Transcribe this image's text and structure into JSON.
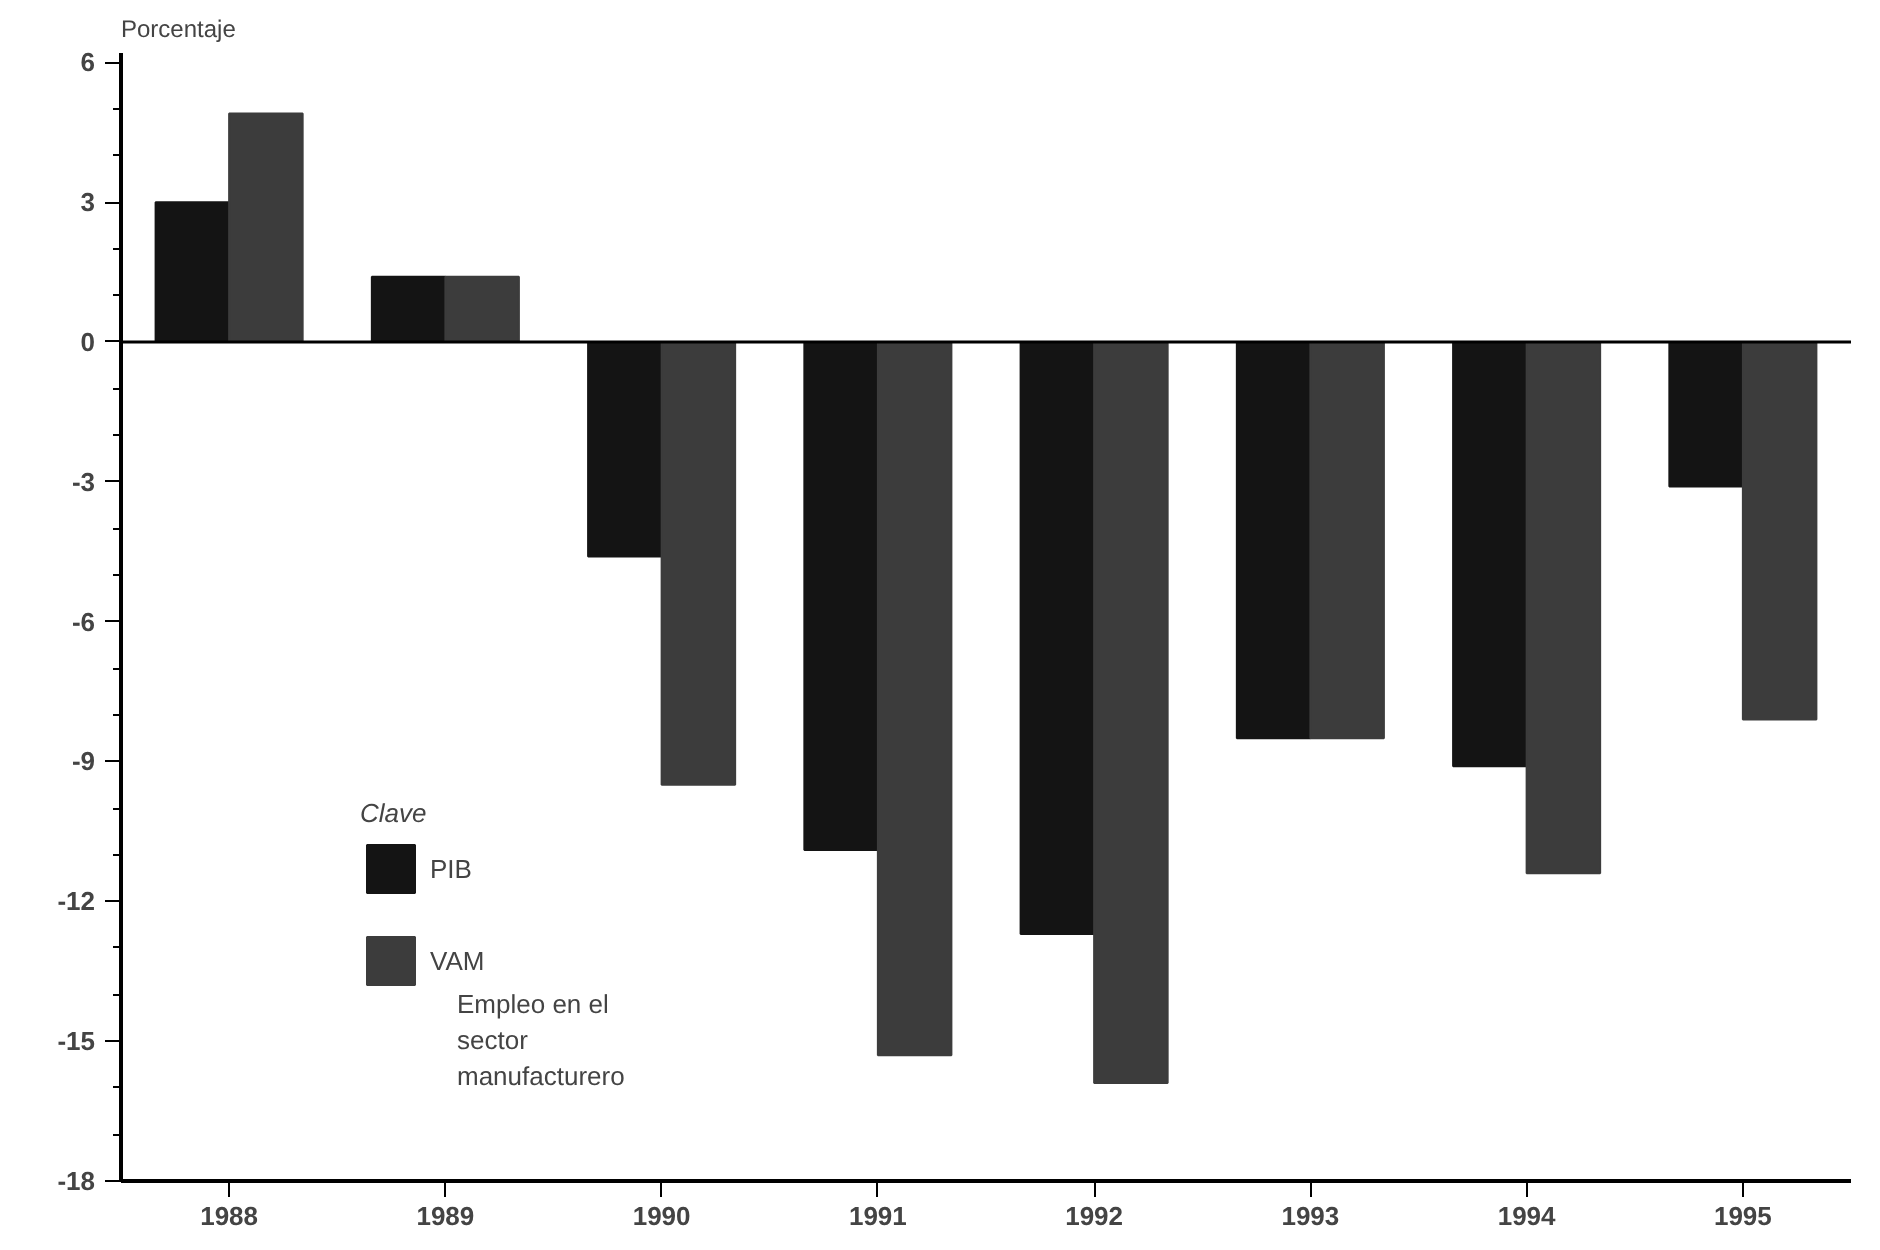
{
  "chart_data": {
    "type": "bar",
    "ylabel": "Porcentaje",
    "legend_title": "Clave",
    "categories": [
      "1988",
      "1989",
      "1990",
      "1991",
      "1992",
      "1993",
      "1994",
      "1995"
    ],
    "series": [
      {
        "name": "PIB",
        "color": "#141414",
        "values": [
          3.0,
          1.4,
          -4.6,
          -10.9,
          -12.7,
          -8.5,
          -9.1,
          -3.1
        ]
      },
      {
        "name": "VAM",
        "color": "#3c3c3c",
        "values": [
          4.9,
          1.4,
          -9.5,
          -15.3,
          -15.9,
          -8.5,
          -11.4,
          -8.1
        ]
      }
    ],
    "ylim": [
      -18,
      6.2
    ],
    "yticks": [
      -18,
      -15,
      -12,
      -9,
      -6,
      -3,
      0,
      3,
      6
    ],
    "annotations": [
      "Empleo en el sector manufacturero"
    ],
    "ref_lines": [
      {
        "axis": "y",
        "value": 0
      }
    ],
    "grid": false,
    "legend": "bottom left"
  }
}
